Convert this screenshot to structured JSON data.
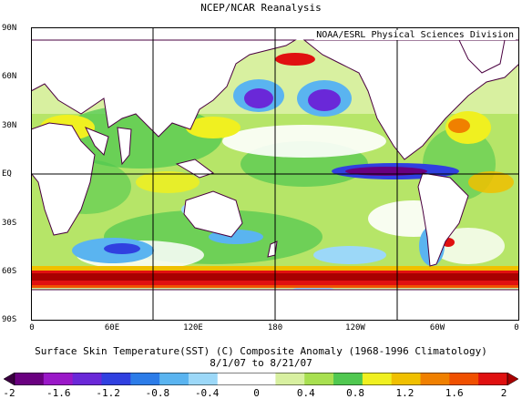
{
  "title": "NCEP/NCAR Reanalysis",
  "credit": "NOAA/ESRL Physical Sciences Division",
  "lat_labels": [
    "90N",
    "60N",
    "30N",
    "EQ",
    "30S",
    "60S",
    "90S"
  ],
  "lon_labels": [
    "0",
    "60E",
    "120E",
    "180",
    "120W",
    "60W",
    "0"
  ],
  "caption_line1": "Surface Skin Temperature(SST) (C) Composite Anomaly (1968-1996 Climatology)",
  "caption_line2": "8/1/07  to 8/21/07",
  "colorbar": {
    "labels": [
      "-2",
      "-1.6",
      "-1.2",
      "-0.8",
      "-0.4",
      "0",
      "0.4",
      "0.8",
      "1.2",
      "1.6",
      "2"
    ],
    "colors": [
      "#3a0040",
      "#6a0080",
      "#9a18c8",
      "#6a28d8",
      "#3040e0",
      "#2c7ce8",
      "#5ab4f0",
      "#9cd8f8",
      "#ffffff",
      "#ffffff",
      "#d8f0a0",
      "#a8e050",
      "#50c850",
      "#f0f020",
      "#f0c000",
      "#f08000",
      "#f05000",
      "#e01010",
      "#a80000"
    ]
  },
  "colors": {
    "land": "#ffffff",
    "coast": "#4a0040",
    "grid": "#000000"
  }
}
